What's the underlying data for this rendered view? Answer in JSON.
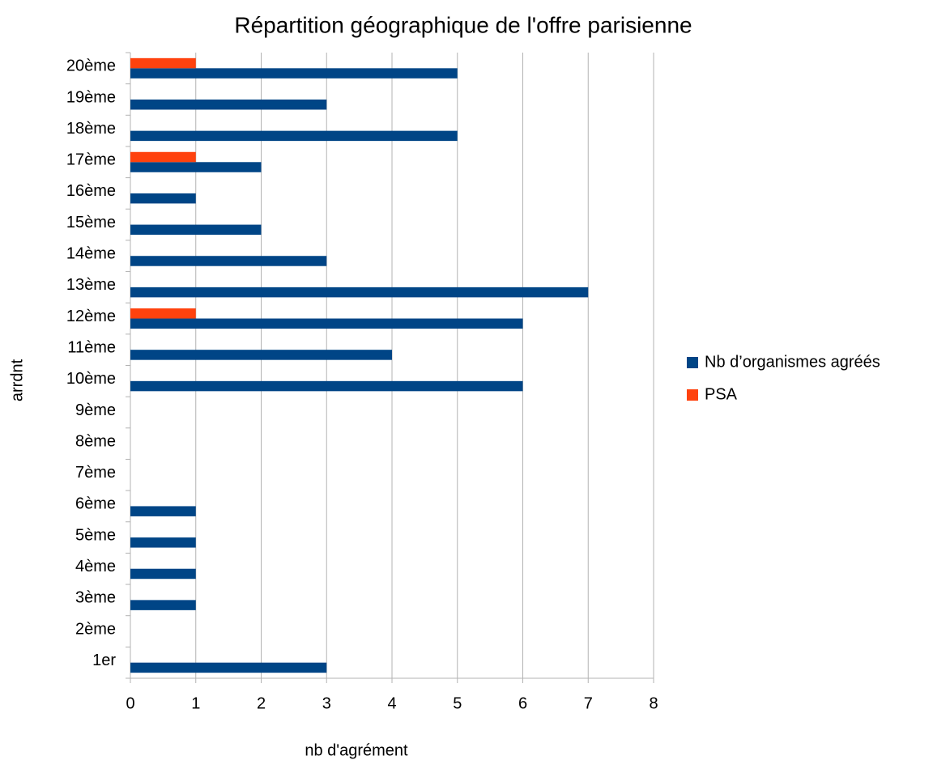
{
  "chart_data": {
    "type": "bar",
    "orientation": "horizontal",
    "title": "Répartition géographique de l'offre parisienne",
    "x_label": "nb d'agrément",
    "y_label": "arrdnt",
    "categories": [
      "1er",
      "2ème",
      "3ème",
      "4ème",
      "5ème",
      "6ème",
      "7ème",
      "8ème",
      "9ème",
      "10ème",
      "11ème",
      "12ème",
      "13ème",
      "14ème",
      "15ème",
      "16ème",
      "17ème",
      "18ème",
      "19ème",
      "20ème"
    ],
    "series": [
      {
        "name": "Nb d’organismes agréés",
        "color": "#004586",
        "values": [
          3,
          0,
          1,
          1,
          1,
          1,
          0,
          0,
          0,
          6,
          4,
          6,
          7,
          3,
          2,
          1,
          2,
          5,
          3,
          5
        ]
      },
      {
        "name": "PSA",
        "color": "#ff420e",
        "values": [
          0,
          0,
          0,
          0,
          0,
          0,
          0,
          0,
          0,
          0,
          0,
          1,
          0,
          0,
          0,
          0,
          1,
          0,
          0,
          1
        ]
      }
    ],
    "xlim": [
      0,
      8
    ],
    "xticks": [
      0,
      1,
      2,
      3,
      4,
      5,
      6,
      7,
      8
    ],
    "grid": true,
    "legend": "right"
  }
}
